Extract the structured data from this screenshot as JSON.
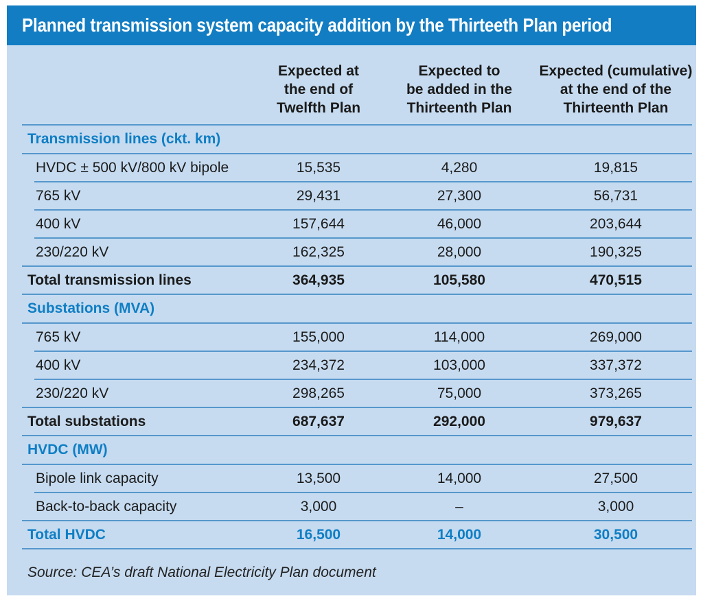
{
  "title": "Planned transmission system capacity addition by the Thirteeth Plan period",
  "columns": [
    "Expected at\nthe end of\nTwelfth Plan",
    "Expected to\nbe added in the\nThirteenth Plan",
    "Expected (cumulative)\nat the end of the\nThirteenth Plan"
  ],
  "sections": [
    {
      "heading": "Transmission lines (ckt. km)",
      "rows": [
        {
          "label": "HVDC ± 500 kV/800 kV bipole",
          "values": [
            "15,535",
            "4,280",
            "19,815"
          ]
        },
        {
          "label": "765 kV",
          "values": [
            "29,431",
            "27,300",
            "56,731"
          ]
        },
        {
          "label": "400 kV",
          "values": [
            "157,644",
            "46,000",
            "203,644"
          ]
        },
        {
          "label": "230/220 kV",
          "values": [
            "162,325",
            "28,000",
            "190,325"
          ]
        }
      ],
      "total": {
        "label": "Total transmission lines",
        "values": [
          "364,935",
          "105,580",
          "470,515"
        ]
      }
    },
    {
      "heading": "Substations (MVA)",
      "rows": [
        {
          "label": "765 kV",
          "values": [
            "155,000",
            "114,000",
            "269,000"
          ]
        },
        {
          "label": "400 kV",
          "values": [
            "234,372",
            "103,000",
            "337,372"
          ]
        },
        {
          "label": "230/220 kV",
          "values": [
            "298,265",
            "75,000",
            "373,265"
          ]
        }
      ],
      "total": {
        "label": "Total substations",
        "values": [
          "687,637",
          "292,000",
          "979,637"
        ]
      }
    },
    {
      "heading": "HVDC (MW)",
      "rows": [
        {
          "label": "Bipole link capacity",
          "values": [
            "13,500",
            "14,000",
            "27,500"
          ]
        },
        {
          "label": "Back-to-back capacity",
          "values": [
            "3,000",
            "–",
            "3,000"
          ]
        }
      ],
      "total": {
        "label": "Total HVDC",
        "values": [
          "16,500",
          "14,000",
          "30,500"
        ]
      }
    }
  ],
  "source": "Source: CEA’s draft National Electricity Plan document",
  "colors": {
    "title_bar": "#127dc3",
    "panel_background": "#c6dbf0",
    "accent_blue": "#0f7ec4",
    "divider": "#5697cc",
    "text": "#1b1b1b"
  }
}
